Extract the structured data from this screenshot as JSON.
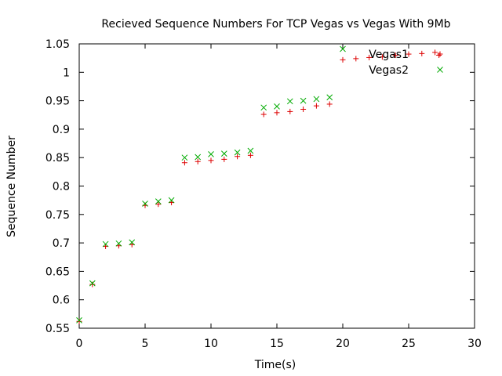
{
  "chart_data": {
    "type": "scatter",
    "title": "Recieved Sequence Numbers For TCP Vegas vs Vegas With 9Mb",
    "xlabel": "Time(s)",
    "ylabel": "Sequence Number",
    "xlim": [
      0,
      30
    ],
    "ylim": [
      0.55,
      1.05
    ],
    "xticks": [
      0,
      5,
      10,
      15,
      20,
      25,
      30
    ],
    "xtick_labels": [
      "0",
      "5",
      "10",
      "15",
      "20",
      "25",
      "30"
    ],
    "yticks": [
      0.55,
      0.6,
      0.65,
      0.7,
      0.75,
      0.8,
      0.85,
      0.9,
      0.95,
      1.0,
      1.05
    ],
    "ytick_labels": [
      "0.55",
      "0.6",
      "0.65",
      "0.7",
      "0.75",
      "0.8",
      "0.85",
      "0.9",
      "0.95",
      "1",
      "1.05"
    ],
    "grid": false,
    "legend_position": "top-right",
    "series": [
      {
        "name": "Vegas1",
        "marker": "plus",
        "color": "#dd0000",
        "x": [
          0,
          1,
          2,
          3,
          4,
          5,
          6,
          7,
          8,
          9,
          10,
          11,
          12,
          13,
          14,
          15,
          16,
          17,
          18,
          19,
          20,
          21,
          22,
          23,
          24,
          25,
          26,
          27,
          27.3
        ],
        "y": [
          0.562,
          0.627,
          0.694,
          0.695,
          0.697,
          0.766,
          0.768,
          0.771,
          0.841,
          0.843,
          0.845,
          0.847,
          0.852,
          0.854,
          0.926,
          0.929,
          0.931,
          0.935,
          0.941,
          0.944,
          1.022,
          1.024,
          1.026,
          1.027,
          1.03,
          1.032,
          1.033,
          1.035,
          1.03
        ]
      },
      {
        "name": "Vegas2",
        "marker": "cross",
        "color": "#00aa00",
        "x": [
          0,
          1,
          2,
          3,
          4,
          5,
          6,
          7,
          8,
          9,
          10,
          11,
          12,
          13,
          14,
          15,
          16,
          17,
          18,
          19,
          20
        ],
        "y": [
          0.564,
          0.629,
          0.698,
          0.699,
          0.701,
          0.769,
          0.773,
          0.775,
          0.85,
          0.851,
          0.856,
          0.857,
          0.859,
          0.862,
          0.938,
          0.94,
          0.949,
          0.95,
          0.953,
          0.956,
          1.041
        ]
      }
    ]
  }
}
